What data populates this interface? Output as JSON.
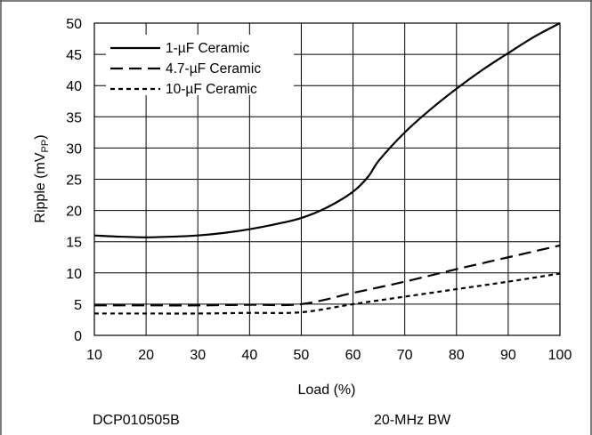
{
  "chart_data": {
    "type": "line",
    "title": "",
    "xlabel": "Load (%)",
    "ylabel": {
      "main": "Ripple (mV",
      "sub": "PP",
      "close": ")"
    },
    "xlim": [
      10,
      100
    ],
    "ylim": [
      0,
      50
    ],
    "x_ticks": [
      10,
      20,
      30,
      40,
      50,
      60,
      70,
      80,
      90,
      100
    ],
    "y_ticks": [
      0,
      5,
      10,
      15,
      20,
      25,
      30,
      35,
      40,
      45,
      50
    ],
    "grid": true,
    "legend_position": "top-left",
    "series": [
      {
        "name": "1-µF Ceramic",
        "dash": "solid",
        "x": [
          10,
          15,
          20,
          25,
          30,
          35,
          40,
          45,
          50,
          55,
          60,
          63,
          65,
          70,
          75,
          80,
          85,
          90,
          95,
          100
        ],
        "y": [
          16,
          15.8,
          15.7,
          15.8,
          16,
          16.4,
          17,
          17.8,
          18.8,
          20.5,
          23,
          25.5,
          28,
          32.5,
          36.2,
          39.5,
          42.5,
          45.2,
          47.8,
          50
        ]
      },
      {
        "name": "4.7-µF Ceramic",
        "dash": "long",
        "x": [
          10,
          20,
          30,
          40,
          50,
          60,
          70,
          80,
          90,
          100
        ],
        "y": [
          4.8,
          4.8,
          4.8,
          4.9,
          5,
          6.8,
          8.6,
          10.6,
          12.5,
          14.4
        ]
      },
      {
        "name": "10-µF Ceramic",
        "dash": "short",
        "x": [
          10,
          20,
          30,
          40,
          50,
          60,
          70,
          80,
          90,
          100
        ],
        "y": [
          3.5,
          3.5,
          3.5,
          3.6,
          3.7,
          5,
          6.2,
          7.4,
          8.6,
          9.9
        ]
      }
    ],
    "footer": {
      "left": "DCP010505B",
      "right": "20-MHz BW"
    }
  }
}
